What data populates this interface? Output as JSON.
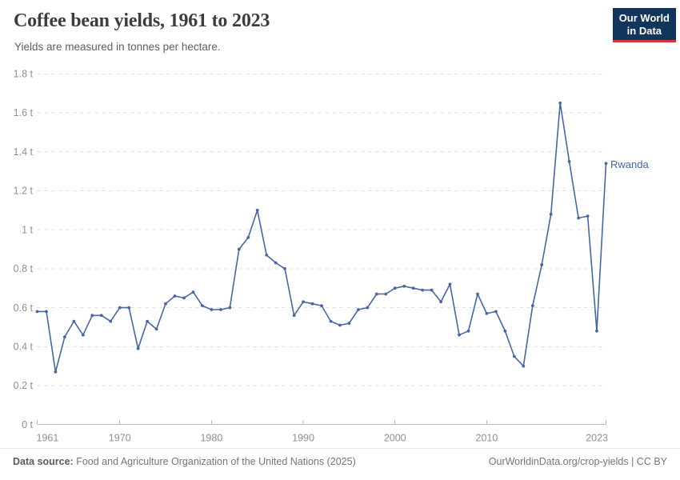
{
  "header": {
    "title": "Coffee bean yields, 1961 to 2023",
    "subtitle": "Yields are measured in tonnes per hectare."
  },
  "logo": {
    "line1": "Our World",
    "line2": "in Data",
    "bg_color": "#12355b",
    "accent_color": "#d7333f"
  },
  "chart_data": {
    "type": "line",
    "title": "Coffee bean yields, 1961 to 2023",
    "xlabel": "",
    "ylabel": "tonnes per hectare",
    "ylim": [
      0,
      1.8
    ],
    "grid": "horizontal-dashed",
    "legend_position": "end-of-line",
    "x_ticks": [
      1961,
      1970,
      1980,
      1990,
      2000,
      2010,
      2023
    ],
    "y_ticks": [
      {
        "value": 0,
        "label": "0 t"
      },
      {
        "value": 0.2,
        "label": "0.2 t"
      },
      {
        "value": 0.4,
        "label": "0.4 t"
      },
      {
        "value": 0.6,
        "label": "0.6 t"
      },
      {
        "value": 0.8,
        "label": "0.8 t"
      },
      {
        "value": 1,
        "label": "1 t"
      },
      {
        "value": 1.2,
        "label": "1.2 t"
      },
      {
        "value": 1.4,
        "label": "1.4 t"
      },
      {
        "value": 1.6,
        "label": "1.6 t"
      },
      {
        "value": 1.8,
        "label": "1.8 t"
      }
    ],
    "x": [
      1961,
      1962,
      1963,
      1964,
      1965,
      1966,
      1967,
      1968,
      1969,
      1970,
      1971,
      1972,
      1973,
      1974,
      1975,
      1976,
      1977,
      1978,
      1979,
      1980,
      1981,
      1982,
      1983,
      1984,
      1985,
      1986,
      1987,
      1988,
      1989,
      1990,
      1991,
      1992,
      1993,
      1994,
      1995,
      1996,
      1997,
      1998,
      1999,
      2000,
      2001,
      2002,
      2003,
      2004,
      2005,
      2006,
      2007,
      2008,
      2009,
      2010,
      2011,
      2012,
      2013,
      2014,
      2015,
      2016,
      2017,
      2018,
      2019,
      2020,
      2021,
      2022,
      2023
    ],
    "series": [
      {
        "name": "Rwanda",
        "color": "#4666a5",
        "values": [
          0.58,
          0.58,
          0.27,
          0.45,
          0.53,
          0.46,
          0.56,
          0.56,
          0.53,
          0.6,
          0.6,
          0.39,
          0.53,
          0.49,
          0.62,
          0.66,
          0.65,
          0.68,
          0.61,
          0.59,
          0.59,
          0.6,
          0.9,
          0.96,
          1.1,
          0.87,
          0.83,
          0.8,
          0.56,
          0.63,
          0.62,
          0.61,
          0.53,
          0.51,
          0.52,
          0.59,
          0.6,
          0.67,
          0.67,
          0.7,
          0.71,
          0.7,
          0.69,
          0.69,
          0.63,
          0.72,
          0.46,
          0.48,
          0.67,
          0.57,
          0.58,
          0.48,
          0.35,
          0.3,
          0.61,
          0.82,
          1.08,
          1.65,
          1.35,
          1.06,
          1.07,
          0.48,
          1.34
        ]
      }
    ],
    "colors": {
      "gridline": "#dedede",
      "axis": "#bbbbbb",
      "tick_label": "#8f8f8f"
    }
  },
  "footer": {
    "source_label": "Data source:",
    "source_value": "Food and Agriculture Organization of the United Nations (2025)",
    "citation": "OurWorldinData.org/crop-yields | CC BY"
  }
}
